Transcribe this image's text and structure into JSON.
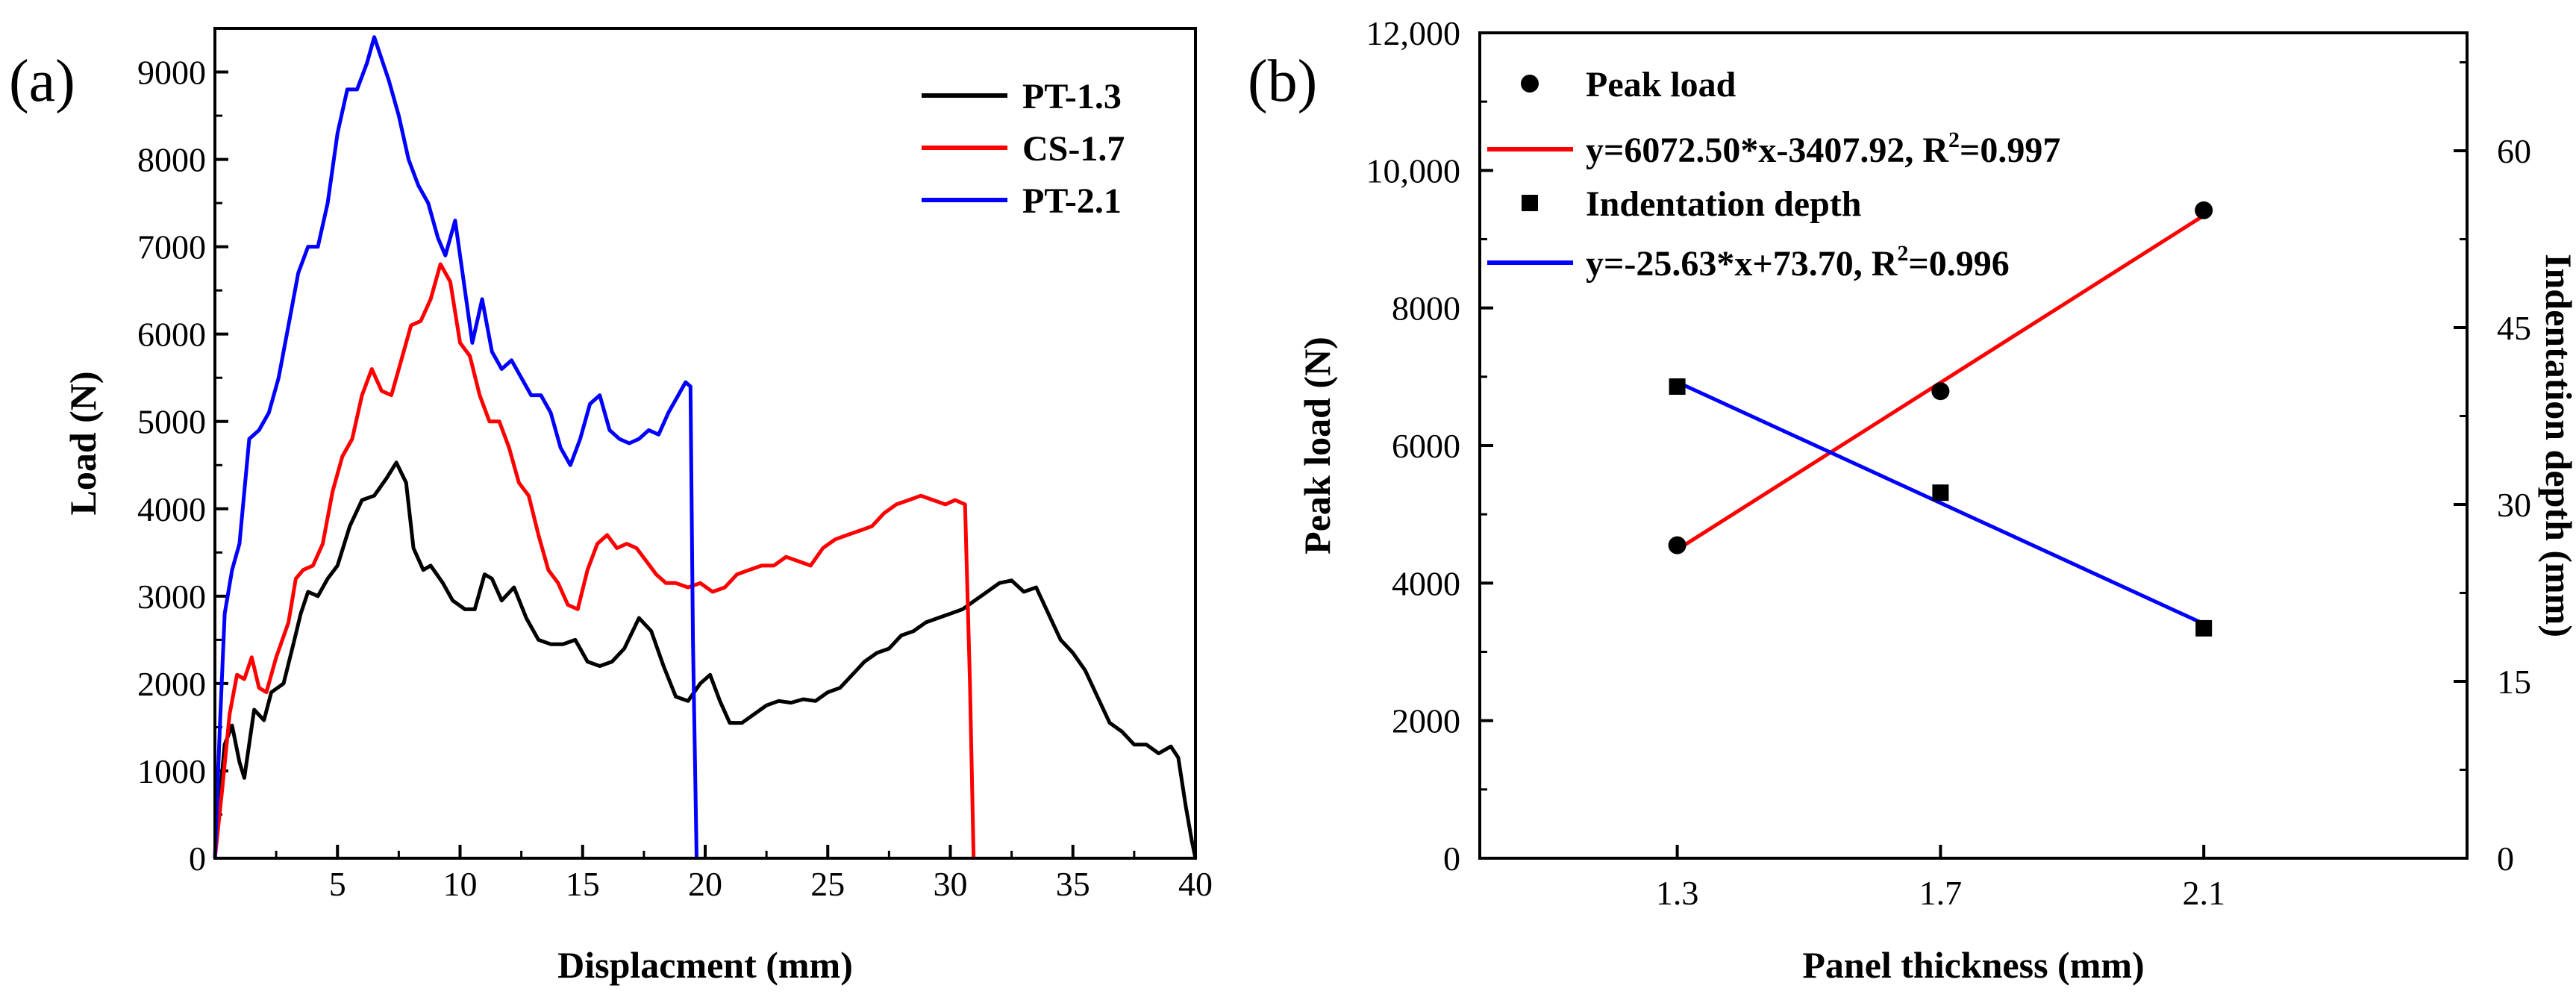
{
  "chart_data": [
    {
      "panel": "(a)",
      "type": "line",
      "xlabel": "Displacment (mm)",
      "ylabel": "Load (N)",
      "xlim": [
        0,
        40
      ],
      "ylim": [
        0,
        9500
      ],
      "xticks": [
        5,
        10,
        15,
        20,
        25,
        30,
        35,
        40
      ],
      "yticks": [
        0,
        1000,
        2000,
        3000,
        4000,
        5000,
        6000,
        7000,
        8000,
        9000
      ],
      "legend_position": "top-right",
      "series": [
        {
          "name": "PT-1.3",
          "color": "#000000",
          "points": [
            [
              0,
              0
            ],
            [
              0.2,
              700
            ],
            [
              0.4,
              1300
            ],
            [
              0.7,
              1520
            ],
            [
              1.0,
              1100
            ],
            [
              1.2,
              920
            ],
            [
              1.6,
              1700
            ],
            [
              2.0,
              1580
            ],
            [
              2.3,
              1900
            ],
            [
              2.8,
              2000
            ],
            [
              3.2,
              2450
            ],
            [
              3.5,
              2800
            ],
            [
              3.8,
              3050
            ],
            [
              4.2,
              3000
            ],
            [
              4.6,
              3200
            ],
            [
              5.0,
              3350
            ],
            [
              5.5,
              3800
            ],
            [
              6.0,
              4100
            ],
            [
              6.5,
              4150
            ],
            [
              7.0,
              4350
            ],
            [
              7.4,
              4530
            ],
            [
              7.8,
              4300
            ],
            [
              8.1,
              3550
            ],
            [
              8.5,
              3300
            ],
            [
              8.8,
              3350
            ],
            [
              9.3,
              3150
            ],
            [
              9.7,
              2950
            ],
            [
              10.2,
              2850
            ],
            [
              10.6,
              2850
            ],
            [
              11.0,
              3250
            ],
            [
              11.3,
              3200
            ],
            [
              11.7,
              2950
            ],
            [
              12.2,
              3100
            ],
            [
              12.7,
              2750
            ],
            [
              13.2,
              2500
            ],
            [
              13.7,
              2450
            ],
            [
              14.2,
              2450
            ],
            [
              14.7,
              2500
            ],
            [
              15.2,
              2250
            ],
            [
              15.7,
              2200
            ],
            [
              16.2,
              2250
            ],
            [
              16.7,
              2400
            ],
            [
              17.3,
              2750
            ],
            [
              17.8,
              2600
            ],
            [
              18.3,
              2200
            ],
            [
              18.8,
              1850
            ],
            [
              19.3,
              1800
            ],
            [
              19.8,
              2000
            ],
            [
              20.2,
              2100
            ],
            [
              20.6,
              1800
            ],
            [
              21.0,
              1550
            ],
            [
              21.5,
              1550
            ],
            [
              22.0,
              1650
            ],
            [
              22.5,
              1750
            ],
            [
              23.0,
              1800
            ],
            [
              23.5,
              1780
            ],
            [
              24.0,
              1820
            ],
            [
              24.5,
              1800
            ],
            [
              25.0,
              1900
            ],
            [
              25.5,
              1950
            ],
            [
              26.0,
              2100
            ],
            [
              26.5,
              2250
            ],
            [
              27.0,
              2350
            ],
            [
              27.5,
              2400
            ],
            [
              28.0,
              2550
            ],
            [
              28.5,
              2600
            ],
            [
              29.0,
              2700
            ],
            [
              29.5,
              2750
            ],
            [
              30.0,
              2800
            ],
            [
              30.5,
              2850
            ],
            [
              31.0,
              2950
            ],
            [
              31.5,
              3050
            ],
            [
              32.0,
              3150
            ],
            [
              32.5,
              3180
            ],
            [
              33.0,
              3050
            ],
            [
              33.5,
              3100
            ],
            [
              34.0,
              2800
            ],
            [
              34.5,
              2500
            ],
            [
              35.0,
              2350
            ],
            [
              35.5,
              2150
            ],
            [
              36.0,
              1850
            ],
            [
              36.5,
              1550
            ],
            [
              37.0,
              1450
            ],
            [
              37.5,
              1300
            ],
            [
              38.0,
              1300
            ],
            [
              38.5,
              1200
            ],
            [
              39.0,
              1280
            ],
            [
              39.3,
              1150
            ],
            [
              39.6,
              600
            ],
            [
              39.85,
              200
            ],
            [
              40.0,
              0
            ]
          ]
        },
        {
          "name": "CS-1.7",
          "color": "#ff0000",
          "points": [
            [
              0,
              0
            ],
            [
              0.3,
              800
            ],
            [
              0.6,
              1650
            ],
            [
              0.9,
              2100
            ],
            [
              1.2,
              2050
            ],
            [
              1.5,
              2300
            ],
            [
              1.8,
              1950
            ],
            [
              2.1,
              1900
            ],
            [
              2.5,
              2300
            ],
            [
              3.0,
              2700
            ],
            [
              3.3,
              3200
            ],
            [
              3.6,
              3300
            ],
            [
              4.0,
              3350
            ],
            [
              4.4,
              3600
            ],
            [
              4.8,
              4200
            ],
            [
              5.2,
              4600
            ],
            [
              5.6,
              4800
            ],
            [
              6.0,
              5300
            ],
            [
              6.4,
              5600
            ],
            [
              6.8,
              5350
            ],
            [
              7.2,
              5300
            ],
            [
              7.6,
              5700
            ],
            [
              8.0,
              6100
            ],
            [
              8.4,
              6150
            ],
            [
              8.8,
              6400
            ],
            [
              9.2,
              6800
            ],
            [
              9.6,
              6600
            ],
            [
              10.0,
              5900
            ],
            [
              10.4,
              5750
            ],
            [
              10.8,
              5300
            ],
            [
              11.2,
              5000
            ],
            [
              11.6,
              5000
            ],
            [
              12.0,
              4700
            ],
            [
              12.4,
              4300
            ],
            [
              12.8,
              4150
            ],
            [
              13.2,
              3700
            ],
            [
              13.6,
              3300
            ],
            [
              14.0,
              3150
            ],
            [
              14.4,
              2900
            ],
            [
              14.8,
              2850
            ],
            [
              15.2,
              3300
            ],
            [
              15.6,
              3600
            ],
            [
              16.0,
              3700
            ],
            [
              16.4,
              3550
            ],
            [
              16.8,
              3600
            ],
            [
              17.2,
              3550
            ],
            [
              17.6,
              3400
            ],
            [
              18.0,
              3250
            ],
            [
              18.4,
              3150
            ],
            [
              18.8,
              3150
            ],
            [
              19.3,
              3100
            ],
            [
              19.8,
              3150
            ],
            [
              20.3,
              3050
            ],
            [
              20.8,
              3100
            ],
            [
              21.3,
              3250
            ],
            [
              21.8,
              3300
            ],
            [
              22.3,
              3350
            ],
            [
              22.8,
              3350
            ],
            [
              23.3,
              3450
            ],
            [
              23.8,
              3400
            ],
            [
              24.3,
              3350
            ],
            [
              24.8,
              3550
            ],
            [
              25.3,
              3650
            ],
            [
              25.8,
              3700
            ],
            [
              26.3,
              3750
            ],
            [
              26.8,
              3800
            ],
            [
              27.3,
              3950
            ],
            [
              27.8,
              4050
            ],
            [
              28.3,
              4100
            ],
            [
              28.8,
              4150
            ],
            [
              29.3,
              4100
            ],
            [
              29.8,
              4050
            ],
            [
              30.2,
              4100
            ],
            [
              30.6,
              4050
            ],
            [
              30.8,
              2000
            ],
            [
              30.95,
              0
            ]
          ]
        },
        {
          "name": "PT-2.1",
          "color": "#0000ff",
          "points": [
            [
              0,
              0
            ],
            [
              0.2,
              1500
            ],
            [
              0.4,
              2800
            ],
            [
              0.7,
              3300
            ],
            [
              1.0,
              3600
            ],
            [
              1.4,
              4800
            ],
            [
              1.8,
              4900
            ],
            [
              2.2,
              5100
            ],
            [
              2.6,
              5500
            ],
            [
              3.0,
              6100
            ],
            [
              3.4,
              6700
            ],
            [
              3.8,
              7000
            ],
            [
              4.2,
              7000
            ],
            [
              4.6,
              7500
            ],
            [
              5.0,
              8300
            ],
            [
              5.4,
              8800
            ],
            [
              5.8,
              8800
            ],
            [
              6.2,
              9100
            ],
            [
              6.5,
              9400
            ],
            [
              6.8,
              9150
            ],
            [
              7.1,
              8900
            ],
            [
              7.5,
              8500
            ],
            [
              7.9,
              8000
            ],
            [
              8.3,
              7700
            ],
            [
              8.7,
              7500
            ],
            [
              9.1,
              7100
            ],
            [
              9.4,
              6900
            ],
            [
              9.8,
              7300
            ],
            [
              10.1,
              6700
            ],
            [
              10.5,
              5900
            ],
            [
              10.9,
              6400
            ],
            [
              11.3,
              5800
            ],
            [
              11.7,
              5600
            ],
            [
              12.1,
              5700
            ],
            [
              12.5,
              5500
            ],
            [
              12.9,
              5300
            ],
            [
              13.3,
              5300
            ],
            [
              13.7,
              5100
            ],
            [
              14.1,
              4700
            ],
            [
              14.5,
              4500
            ],
            [
              14.9,
              4800
            ],
            [
              15.3,
              5200
            ],
            [
              15.7,
              5300
            ],
            [
              16.1,
              4900
            ],
            [
              16.5,
              4800
            ],
            [
              16.9,
              4750
            ],
            [
              17.3,
              4800
            ],
            [
              17.7,
              4900
            ],
            [
              18.1,
              4850
            ],
            [
              18.5,
              5100
            ],
            [
              18.9,
              5300
            ],
            [
              19.2,
              5450
            ],
            [
              19.4,
              5400
            ],
            [
              19.5,
              2500
            ],
            [
              19.65,
              0
            ]
          ]
        }
      ]
    },
    {
      "panel": "(b)",
      "type": "scatter",
      "xlabel": "Panel thickness (mm)",
      "ylabel": "Peak load (N)",
      "y2label": "Indentation depth (mm)",
      "categories": [
        "1.3",
        "1.7",
        "2.1"
      ],
      "x_values": [
        1.3,
        1.7,
        2.1
      ],
      "xlim": [
        1.0,
        2.5
      ],
      "ylim": [
        0,
        12000
      ],
      "y2lim": [
        0,
        70
      ],
      "yticks": [
        0,
        2000,
        4000,
        6000,
        8000,
        10000,
        12000
      ],
      "ytick_labels": [
        "0",
        "2000",
        "4000",
        "6000",
        "8000",
        "10,000",
        "12,000"
      ],
      "y2ticks": [
        0,
        15,
        30,
        45,
        60
      ],
      "legend_position": "top-left",
      "series": [
        {
          "name": "Peak load",
          "marker": "circle",
          "axis": "left",
          "color": "#000000",
          "values": [
            4550,
            6790,
            9420
          ]
        },
        {
          "name": "y=6072.50*x-3407.92, R",
          "sup": "2",
          "name_suffix": "=0.997",
          "type": "fit",
          "axis": "left",
          "color": "#ff0000",
          "slope": 6072.5,
          "intercept": -3407.92
        },
        {
          "name": "Indentation depth",
          "marker": "square",
          "axis": "right",
          "color": "#000000",
          "values": [
            40.0,
            31.0,
            19.5
          ]
        },
        {
          "name": "y=-25.63*x+73.70, R",
          "sup": "2",
          "name_suffix": "=0.996",
          "type": "fit",
          "axis": "right",
          "color": "#0000ff",
          "slope": -25.63,
          "intercept": 73.7
        }
      ]
    }
  ]
}
